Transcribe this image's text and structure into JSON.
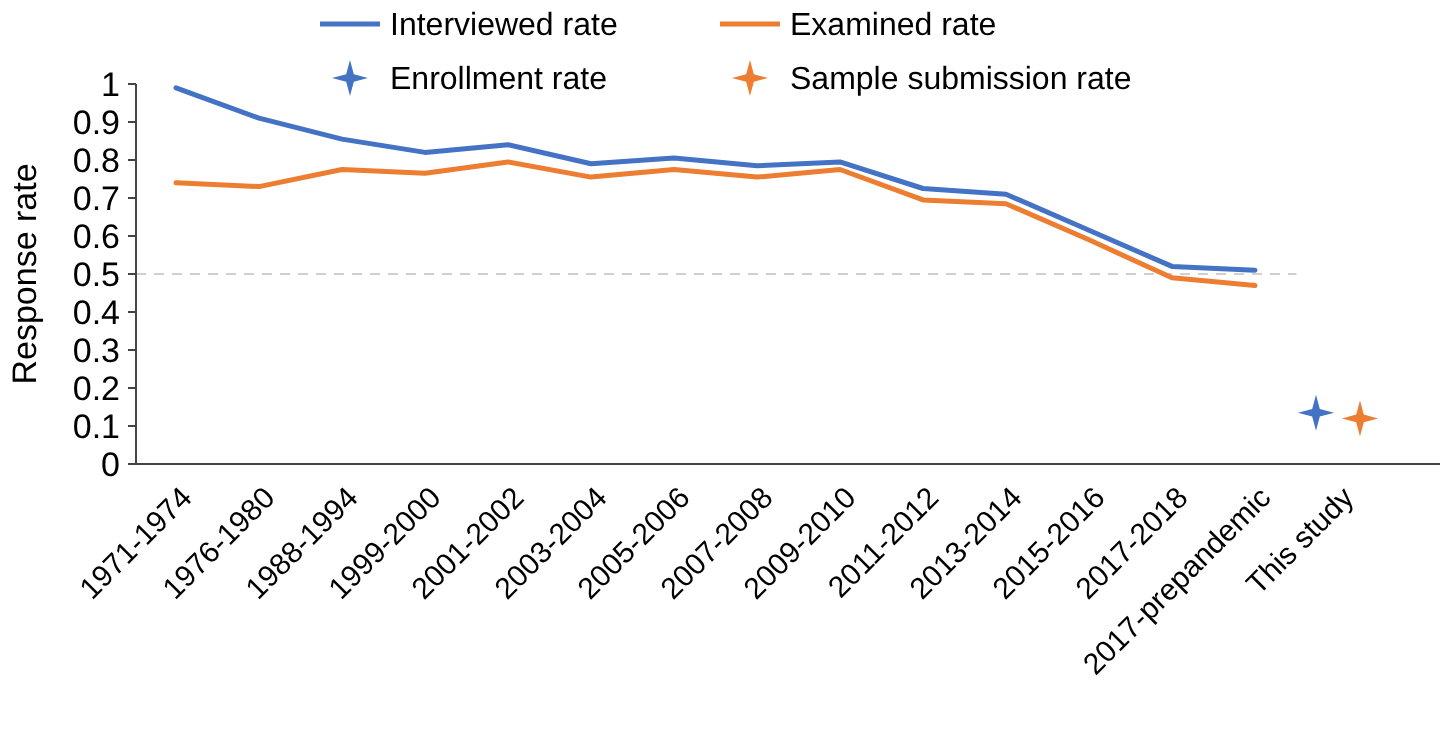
{
  "chart_data": {
    "type": "line",
    "ylabel": "Response rate",
    "categories": [
      "1971-1974",
      "1976-1980",
      "1988-1994",
      "1999-2000",
      "2001-2002",
      "2003-2004",
      "2005-2006",
      "2007-2008",
      "2009-2010",
      "2011-2012",
      "2013-2014",
      "2015-2016",
      "2017-2018",
      "2017-prepandemic",
      "This study"
    ],
    "series": [
      {
        "name": "Interviewed rate",
        "marker": "none",
        "color": "#4472c4",
        "values": [
          0.99,
          0.91,
          0.855,
          0.82,
          0.84,
          0.79,
          0.805,
          0.785,
          0.795,
          0.725,
          0.71,
          0.615,
          0.52,
          0.51,
          null
        ]
      },
      {
        "name": "Examined rate",
        "marker": "none",
        "color": "#ed7d31",
        "values": [
          0.74,
          0.73,
          0.775,
          0.765,
          0.795,
          0.755,
          0.775,
          0.755,
          0.775,
          0.695,
          0.685,
          0.59,
          0.49,
          0.47,
          null
        ]
      },
      {
        "name": "Enrollment rate",
        "type": "scatter",
        "marker": "star",
        "color": "#4472c4",
        "x": [
          "This study"
        ],
        "values": [
          0.135
        ]
      },
      {
        "name": "Sample submission rate",
        "type": "scatter",
        "marker": "star",
        "color": "#ed7d31",
        "x": [
          "This study"
        ],
        "values": [
          0.12
        ]
      }
    ],
    "ylim": [
      0,
      1
    ],
    "yticks": [
      0,
      0.1,
      0.2,
      0.3,
      0.4,
      0.5,
      0.6,
      0.7,
      0.8,
      0.9,
      1
    ],
    "ref_lines": [
      {
        "axis": "y",
        "value": 0.5,
        "color": "#d0d0d0",
        "line_style": "dashed"
      }
    ],
    "grid": false,
    "legend": "top"
  }
}
